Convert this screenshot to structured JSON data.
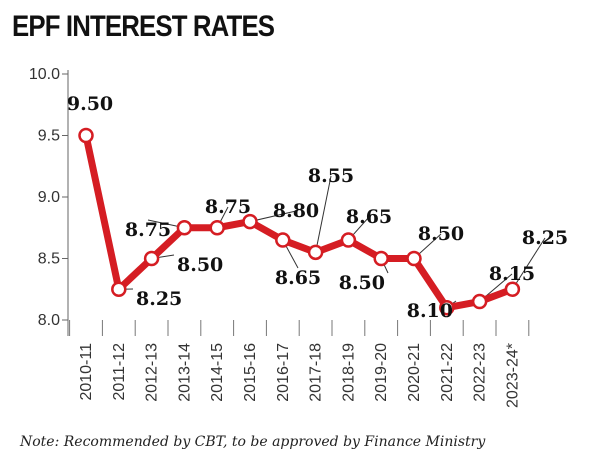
{
  "chart_data": {
    "type": "line",
    "title": "EPF INTEREST RATES",
    "categories": [
      "2010-11",
      "2011-12",
      "2012-13",
      "2013-14",
      "2014-15",
      "2015-16",
      "2016-17",
      "2017-18",
      "2018-19",
      "2019-20",
      "2020-21",
      "2021-22",
      "2022-23",
      "2023-24*"
    ],
    "values": [
      9.5,
      8.25,
      8.5,
      8.75,
      8.75,
      8.8,
      8.65,
      8.55,
      8.65,
      8.5,
      8.5,
      8.1,
      8.15,
      8.25
    ],
    "data_labels": [
      "9.50",
      "8.25",
      "8.50",
      "8.75",
      "8.75",
      "8.80",
      "8.65",
      "8.55",
      "8.65",
      "8.50",
      "8.50",
      "8.10",
      "8.15",
      "8.25"
    ],
    "y_ticks": [
      "10.0",
      "9.5",
      "9.0",
      "8.5",
      "8.0"
    ],
    "ylim": [
      8.0,
      10.0
    ],
    "xlabel": "",
    "ylabel": "",
    "grid": false,
    "line_color": "#d51d23"
  },
  "note": "Note: Recommended by CBT, to be approved by Finance Ministry"
}
